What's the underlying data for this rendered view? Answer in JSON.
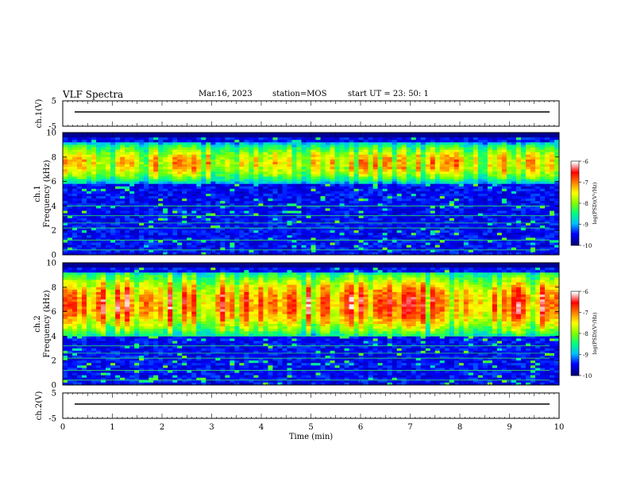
{
  "header": {
    "title": "VLF Spectra",
    "date": "Mar.16, 2023",
    "station": "station=MOS",
    "start_time": "start  UT =   23: 50: 1"
  },
  "chart_data": [
    {
      "type": "line",
      "panel": "ch1-voltage",
      "ylabel": "ch.1(V)",
      "ylim": [
        -5,
        5
      ],
      "yticks": [
        "5",
        "-5"
      ],
      "x": [
        0,
        10
      ],
      "values": [
        0,
        0
      ],
      "color": "#000000"
    },
    {
      "type": "heatmap",
      "panel": "ch1-spectrogram",
      "ylabel": "ch.1\nFrequency (kHz)",
      "ylim": [
        0,
        10
      ],
      "yticks": [
        "0",
        "2",
        "4",
        "6",
        "8",
        "10"
      ],
      "xlim": [
        0,
        10
      ],
      "zlim": [
        -10,
        -6
      ],
      "colorbar_label": "log(PSD)(V²/Hz)",
      "colorbar_ticks": [
        "-6",
        "-7",
        "-8",
        "-9",
        "-10"
      ],
      "band_center_khz": 7.5,
      "band_halfwidth_khz": 1.6,
      "band_peak_log_psd": -6.8
    },
    {
      "type": "heatmap",
      "panel": "ch2-spectrogram",
      "ylabel": "ch.2\nFrequency (kHz)",
      "ylim": [
        0,
        10
      ],
      "yticks": [
        "0",
        "2",
        "4",
        "6",
        "8",
        "10"
      ],
      "xlim": [
        0,
        10
      ],
      "zlim": [
        -10,
        -6
      ],
      "colorbar_label": "log(PSD)(V²/Hz)",
      "colorbar_ticks": [
        "-6",
        "-7",
        "-8",
        "-9",
        "-10"
      ],
      "band_center_khz": 6.6,
      "band_halfwidth_khz": 2.6,
      "band_peak_log_psd": -6.2
    },
    {
      "type": "line",
      "panel": "ch2-voltage",
      "ylabel": "ch.2(V)",
      "ylim": [
        -5,
        5
      ],
      "yticks": [
        "5",
        "-5"
      ],
      "x": [
        0,
        10
      ],
      "values": [
        0,
        0
      ],
      "color": "#000000"
    }
  ],
  "xaxis": {
    "label": "Time (min)",
    "ticks": [
      "0",
      "1",
      "2",
      "3",
      "4",
      "5",
      "6",
      "7",
      "8",
      "9",
      "10"
    ]
  },
  "colormap": [
    "#00007f",
    "#0000ff",
    "#00bfff",
    "#00ff80",
    "#80ff00",
    "#ffff00",
    "#ff8000",
    "#ff0000",
    "#ffffff"
  ]
}
